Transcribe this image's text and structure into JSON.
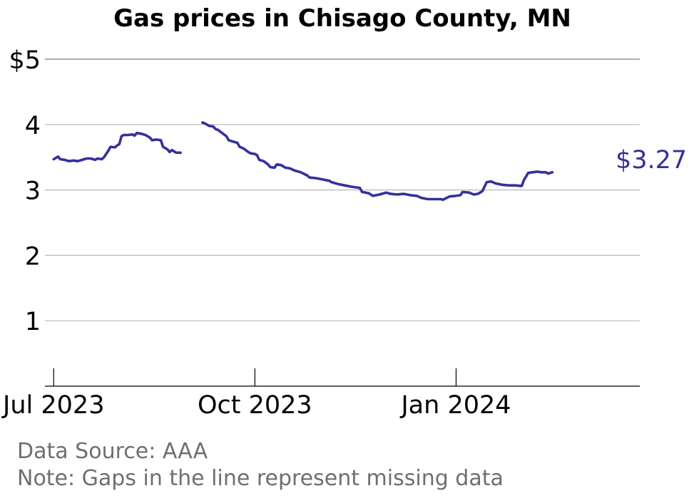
{
  "chart_data": {
    "type": "line",
    "title": "Gas prices in Chisago County, MN",
    "ylim": [
      0,
      5
    ],
    "yticks": [
      1,
      2,
      3,
      4,
      5
    ],
    "ytick_labels": [
      "1",
      "2",
      "3",
      "4",
      "$5"
    ],
    "xlim": [
      "2023-06-27",
      "2024-03-25"
    ],
    "xticks": [
      "2023-07-01",
      "2023-10-01",
      "2024-01-01"
    ],
    "xtick_labels": [
      "Jul 2023",
      "Oct 2023",
      "Jan 2024"
    ],
    "grid": "horizontal",
    "end_label": "$3.27",
    "line_color": "#35309a",
    "series": [
      {
        "segments": [
          [
            [
              "2023-07-01",
              3.47
            ],
            [
              "2023-07-03",
              3.51
            ],
            [
              "2023-07-04",
              3.47
            ],
            [
              "2023-07-06",
              3.46
            ],
            [
              "2023-07-08",
              3.44
            ],
            [
              "2023-07-10",
              3.45
            ],
            [
              "2023-07-12",
              3.44
            ],
            [
              "2023-07-14",
              3.46
            ],
            [
              "2023-07-16",
              3.48
            ],
            [
              "2023-07-18",
              3.48
            ],
            [
              "2023-07-20",
              3.46
            ],
            [
              "2023-07-21",
              3.48
            ],
            [
              "2023-07-23",
              3.47
            ],
            [
              "2023-07-24",
              3.5
            ],
            [
              "2023-07-26",
              3.6
            ],
            [
              "2023-07-27",
              3.66
            ],
            [
              "2023-07-29",
              3.65
            ],
            [
              "2023-07-30",
              3.68
            ],
            [
              "2023-07-31",
              3.7
            ],
            [
              "2023-08-01",
              3.82
            ],
            [
              "2023-08-02",
              3.84
            ],
            [
              "2023-08-04",
              3.84
            ],
            [
              "2023-08-06",
              3.85
            ],
            [
              "2023-08-07",
              3.83
            ],
            [
              "2023-08-08",
              3.87
            ],
            [
              "2023-08-10",
              3.86
            ],
            [
              "2023-08-12",
              3.84
            ],
            [
              "2023-08-14",
              3.8
            ],
            [
              "2023-08-15",
              3.76
            ],
            [
              "2023-08-17",
              3.77
            ],
            [
              "2023-08-19",
              3.76
            ],
            [
              "2023-08-20",
              3.66
            ],
            [
              "2023-08-22",
              3.62
            ],
            [
              "2023-08-23",
              3.58
            ],
            [
              "2023-08-24",
              3.61
            ],
            [
              "2023-08-26",
              3.57
            ],
            [
              "2023-08-28",
              3.57
            ]
          ],
          [
            [
              "2023-09-07",
              4.03
            ],
            [
              "2023-09-08",
              4.02
            ],
            [
              "2023-09-10",
              3.98
            ],
            [
              "2023-09-12",
              3.97
            ],
            [
              "2023-09-13",
              3.93
            ],
            [
              "2023-09-14",
              3.92
            ],
            [
              "2023-09-16",
              3.87
            ],
            [
              "2023-09-18",
              3.82
            ],
            [
              "2023-09-19",
              3.76
            ],
            [
              "2023-09-21",
              3.74
            ],
            [
              "2023-09-23",
              3.72
            ],
            [
              "2023-09-24",
              3.66
            ],
            [
              "2023-09-26",
              3.63
            ],
            [
              "2023-09-28",
              3.58
            ],
            [
              "2023-09-29",
              3.56
            ],
            [
              "2023-10-01",
              3.55
            ],
            [
              "2023-10-02",
              3.53
            ],
            [
              "2023-10-03",
              3.46
            ],
            [
              "2023-10-05",
              3.44
            ],
            [
              "2023-10-07",
              3.39
            ],
            [
              "2023-10-08",
              3.35
            ],
            [
              "2023-10-10",
              3.34
            ],
            [
              "2023-10-11",
              3.39
            ],
            [
              "2023-10-13",
              3.38
            ],
            [
              "2023-10-15",
              3.34
            ],
            [
              "2023-10-17",
              3.33
            ],
            [
              "2023-10-19",
              3.3
            ],
            [
              "2023-10-22",
              3.27
            ],
            [
              "2023-10-25",
              3.22
            ],
            [
              "2023-10-26",
              3.19
            ],
            [
              "2023-10-29",
              3.18
            ],
            [
              "2023-11-01",
              3.16
            ],
            [
              "2023-11-04",
              3.14
            ],
            [
              "2023-11-05",
              3.12
            ],
            [
              "2023-11-08",
              3.09
            ],
            [
              "2023-11-11",
              3.07
            ],
            [
              "2023-11-14",
              3.05
            ],
            [
              "2023-11-18",
              3.03
            ],
            [
              "2023-11-19",
              2.97
            ],
            [
              "2023-11-22",
              2.95
            ],
            [
              "2023-11-24",
              2.91
            ],
            [
              "2023-11-27",
              2.93
            ],
            [
              "2023-11-30",
              2.96
            ],
            [
              "2023-12-02",
              2.94
            ],
            [
              "2023-12-05",
              2.93
            ],
            [
              "2023-12-08",
              2.94
            ],
            [
              "2023-12-11",
              2.92
            ],
            [
              "2023-12-14",
              2.91
            ],
            [
              "2023-12-16",
              2.88
            ],
            [
              "2023-12-19",
              2.86
            ],
            [
              "2023-12-22",
              2.86
            ],
            [
              "2023-12-25",
              2.86
            ],
            [
              "2023-12-26",
              2.85
            ],
            [
              "2023-12-29",
              2.9
            ],
            [
              "2024-01-01",
              2.91
            ],
            [
              "2024-01-03",
              2.92
            ],
            [
              "2024-01-04",
              2.97
            ],
            [
              "2024-01-07",
              2.96
            ],
            [
              "2024-01-09",
              2.93
            ],
            [
              "2024-01-11",
              2.94
            ],
            [
              "2024-01-13",
              2.98
            ],
            [
              "2024-01-15",
              3.12
            ],
            [
              "2024-01-17",
              3.13
            ],
            [
              "2024-01-19",
              3.1
            ],
            [
              "2024-01-22",
              3.08
            ],
            [
              "2024-01-25",
              3.07
            ],
            [
              "2024-01-28",
              3.07
            ],
            [
              "2024-01-31",
              3.06
            ],
            [
              "2024-02-01",
              3.15
            ],
            [
              "2024-02-03",
              3.26
            ],
            [
              "2024-02-05",
              3.27
            ],
            [
              "2024-02-07",
              3.28
            ],
            [
              "2024-02-09",
              3.27
            ],
            [
              "2024-02-11",
              3.27
            ],
            [
              "2024-02-12",
              3.25
            ],
            [
              "2024-02-14",
              3.27
            ]
          ]
        ]
      }
    ]
  },
  "notes": {
    "source": "Data Source: AAA",
    "gaps": "Note: Gaps in the line represent missing data"
  }
}
